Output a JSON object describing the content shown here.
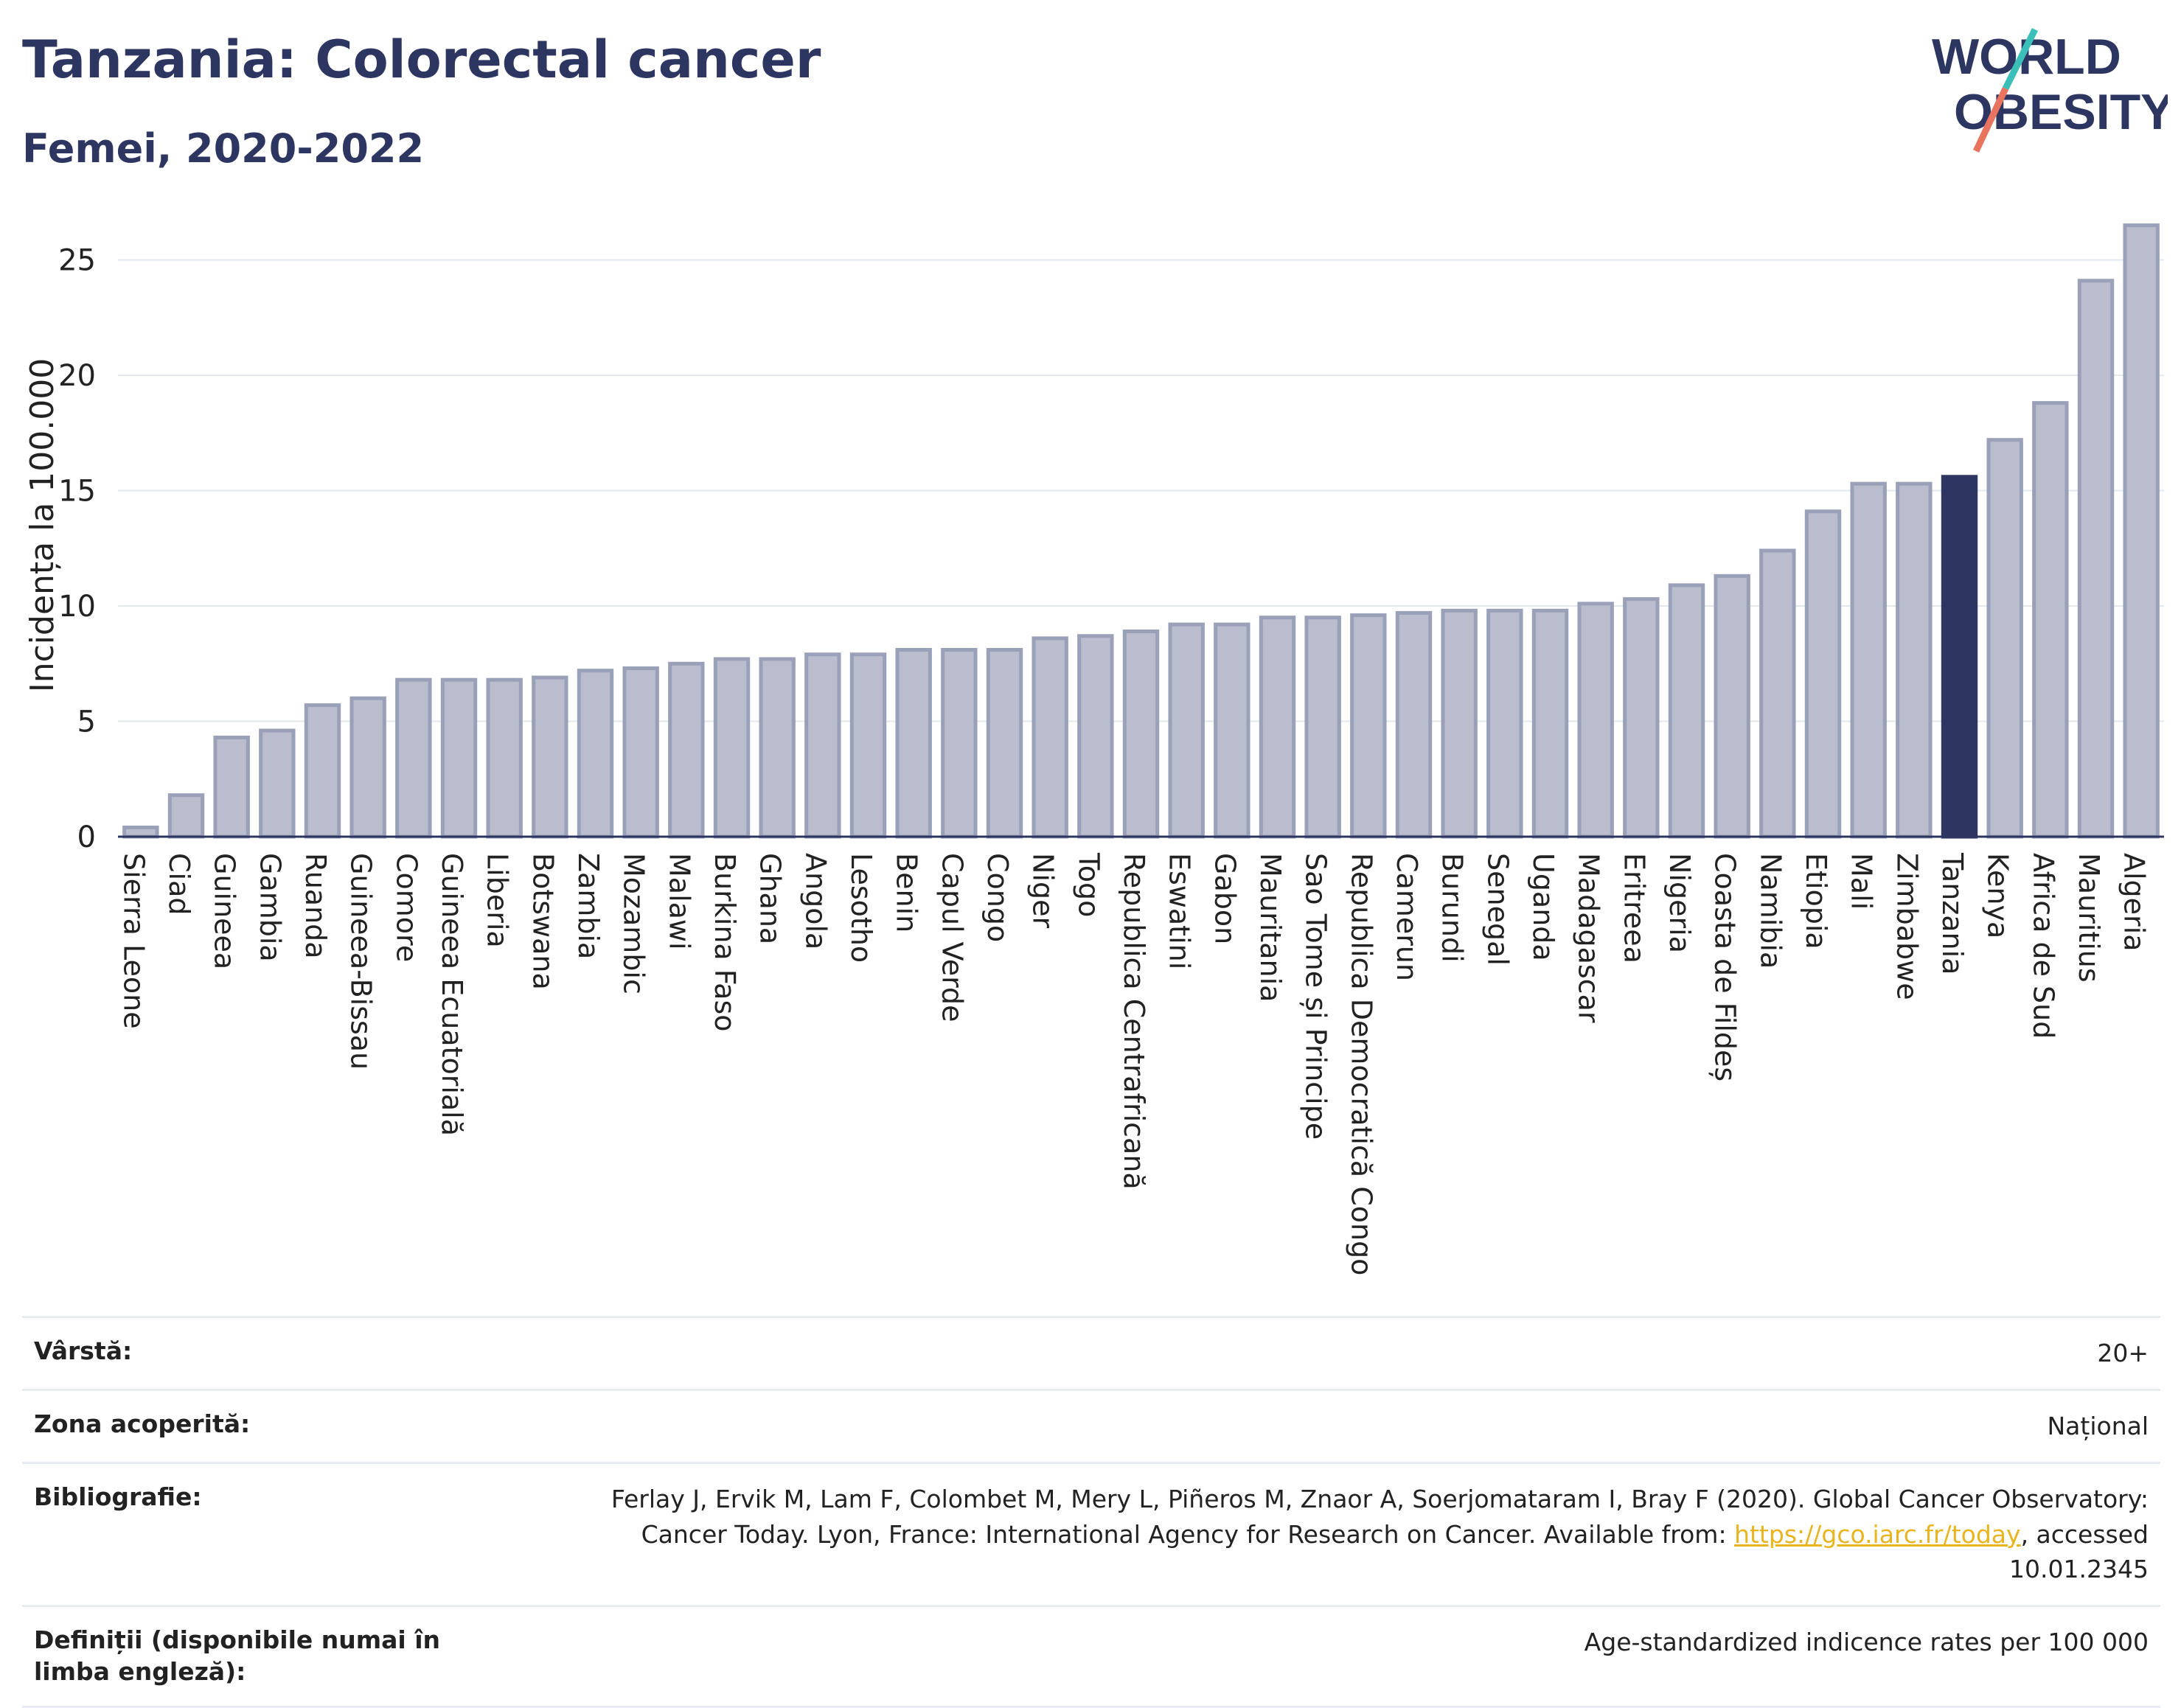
{
  "header": {
    "title": "Tanzania: Colorectal cancer",
    "subtitle": "Femei, 2020-2022",
    "logo_line1": "WORLD",
    "logo_line2": "OBESITY"
  },
  "chart_data": {
    "type": "bar",
    "ylabel": "Incidența la 100.000",
    "ylim": [
      0,
      27
    ],
    "yticks": [
      0,
      5,
      10,
      15,
      20,
      25
    ],
    "grid": true,
    "highlight": "Tanzania",
    "colors": {
      "bar": "#b9bdcd",
      "bar_border": "#9aa0b8",
      "highlight": "#2d3561"
    },
    "categories": [
      "Sierra Leone",
      "Ciad",
      "Guineea",
      "Gambia",
      "Ruanda",
      "Guineea-Bissau",
      "Comore",
      "Guineea Ecuatorială",
      "Liberia",
      "Botswana",
      "Zambia",
      "Mozambic",
      "Malawi",
      "Burkina Faso",
      "Ghana",
      "Angola",
      "Lesotho",
      "Benin",
      "Capul Verde",
      "Congo",
      "Niger",
      "Togo",
      "Republica Centrafricană",
      "Eswatini",
      "Gabon",
      "Mauritania",
      "Sao Tome și Principe",
      "Republica Democratică Congo",
      "Camerun",
      "Burundi",
      "Senegal",
      "Uganda",
      "Madagascar",
      "Eritreea",
      "Nigeria",
      "Coasta de Fildeș",
      "Namibia",
      "Etiopia",
      "Mali",
      "Zimbabwe",
      "Tanzania",
      "Kenya",
      "Africa de Sud",
      "Mauritius",
      "Algeria"
    ],
    "values": [
      0.4,
      1.8,
      4.3,
      4.6,
      5.7,
      6.0,
      6.8,
      6.8,
      6.8,
      6.9,
      7.2,
      7.3,
      7.5,
      7.7,
      7.7,
      7.9,
      7.9,
      8.1,
      8.1,
      8.1,
      8.6,
      8.7,
      8.9,
      9.2,
      9.2,
      9.5,
      9.5,
      9.6,
      9.7,
      9.8,
      9.8,
      9.8,
      10.1,
      10.3,
      10.9,
      11.3,
      12.4,
      14.1,
      15.3,
      15.3,
      15.6,
      17.2,
      18.8,
      24.1,
      26.5
    ]
  },
  "meta": {
    "age_label": "Vârstă:",
    "age_value": "20+",
    "coverage_label": "Zona acoperită:",
    "coverage_value": "Național",
    "biblio_label": "Bibliografie:",
    "biblio_text1": "Ferlay J, Ervik M, Lam F, Colombet M, Mery L, Piñeros M, Znaor A, Soerjomataram I, Bray F (2020). Global Cancer Observatory: Cancer Today. Lyon, France: International Agency for Research on Cancer. Available from: ",
    "biblio_link": "https://gco.iarc.fr/today",
    "biblio_text2": ", accessed 10.01.2345",
    "definitions_label": "Definiții (disponibile numai în limba engleză):",
    "definitions_value": "Age-standardized indicence rates per 100 000"
  }
}
